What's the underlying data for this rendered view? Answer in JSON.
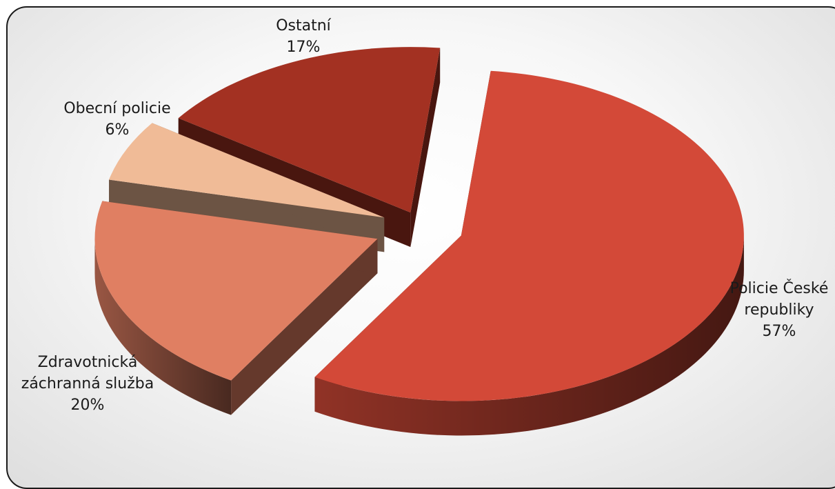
{
  "chart_data": {
    "type": "pie",
    "style": "3d-exploded",
    "title": "",
    "legend": "none",
    "start_angle_deg": -84,
    "slices": [
      {
        "name": "Policie České republiky",
        "value": 57,
        "label": "57%",
        "color": "#d34938",
        "explode": 60
      },
      {
        "name": "Zdravotnická záchranná služba",
        "value": 20,
        "label": "20%",
        "color": "#e07f62",
        "explode": 70
      },
      {
        "name": "Obecní policie",
        "value": 6,
        "label": "6%",
        "color": "#f0bb97",
        "explode": 60
      },
      {
        "name": "Ostatní",
        "value": 17,
        "label": "17%",
        "color": "#a33122",
        "explode": 40
      }
    ],
    "label_lines": [
      [
        "Policie České",
        "republiky",
        "57%"
      ],
      [
        "Zdravotnická",
        "záchranná služba",
        "20%"
      ],
      [
        "Obecní policie",
        "6%"
      ],
      [
        "Ostatní",
        "17%"
      ]
    ]
  }
}
